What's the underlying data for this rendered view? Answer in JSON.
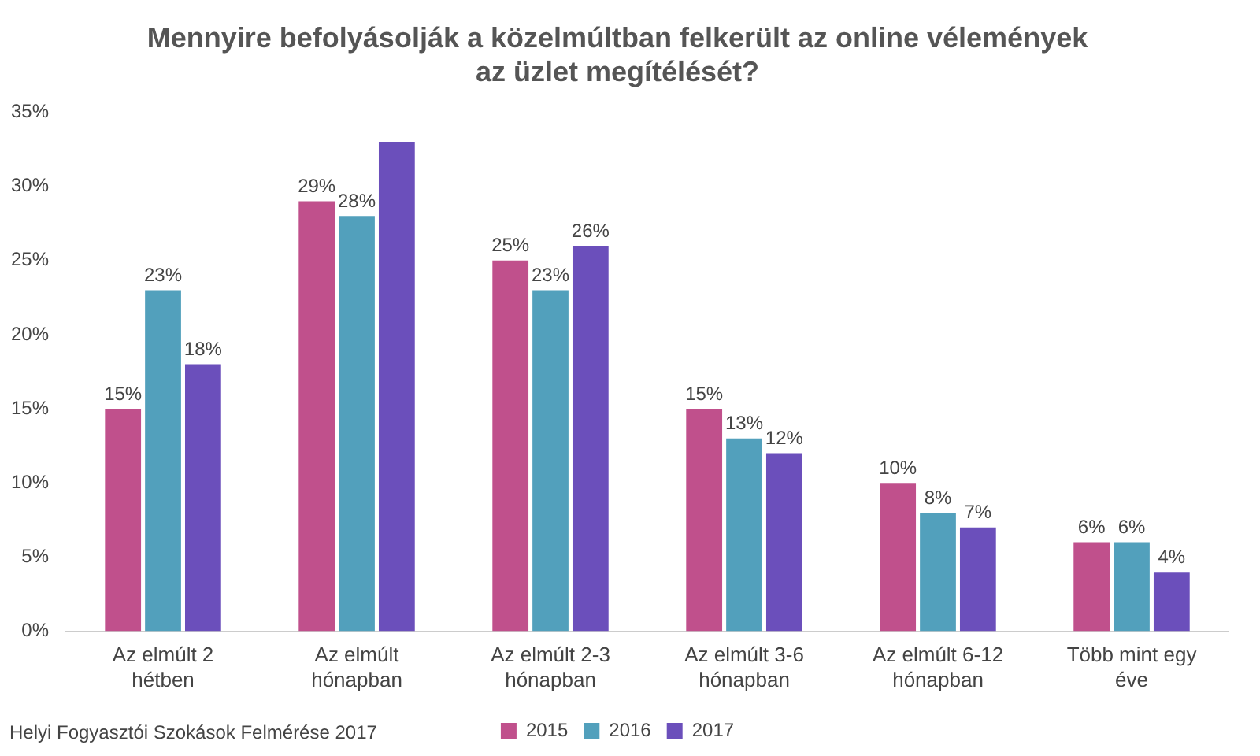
{
  "chart_data": {
    "type": "bar",
    "title": "Mennyire befolyásolják a közelmúltban felkerült az online vélemények az üzlet megítélését?",
    "categories": [
      "Az elmúlt 2 hétben",
      "Az elmúlt hónapban",
      "Az elmúlt 2-3 hónapban",
      "Az elmúlt 3-6 hónapban",
      "Az elmúlt 6-12 hónapban",
      "Több mint egy éve"
    ],
    "series": [
      {
        "name": "2015",
        "color": "#c0508c",
        "values": [
          15,
          29,
          25,
          15,
          10,
          6
        ],
        "value_labels": [
          "15%",
          "29%",
          "25%",
          "15%",
          "10%",
          "6%"
        ]
      },
      {
        "name": "2016",
        "color": "#52a0bc",
        "values": [
          23,
          28,
          23,
          13,
          8,
          6
        ],
        "value_labels": [
          "23%",
          "28%",
          "23%",
          "13%",
          "8%",
          "6%"
        ]
      },
      {
        "name": "2017",
        "color": "#6b4fbb",
        "values": [
          18,
          33,
          26,
          12,
          7,
          4
        ],
        "value_labels": [
          "18%",
          null,
          "26%",
          "12%",
          "7%",
          "4%"
        ]
      }
    ],
    "ylim": [
      0,
      35
    ],
    "yticks": [
      {
        "value": 0,
        "label": "0%"
      },
      {
        "value": 5,
        "label": "5%"
      },
      {
        "value": 10,
        "label": "10%"
      },
      {
        "value": 15,
        "label": "15%"
      },
      {
        "value": 20,
        "label": "20%"
      },
      {
        "value": 25,
        "label": "25%"
      },
      {
        "value": 30,
        "label": "30%"
      },
      {
        "value": 35,
        "label": "35%"
      }
    ],
    "grid": false,
    "legend": "bottom",
    "annotations": [
      "Helyi Fogyasztói Szokások Felmérése 2017"
    ]
  }
}
